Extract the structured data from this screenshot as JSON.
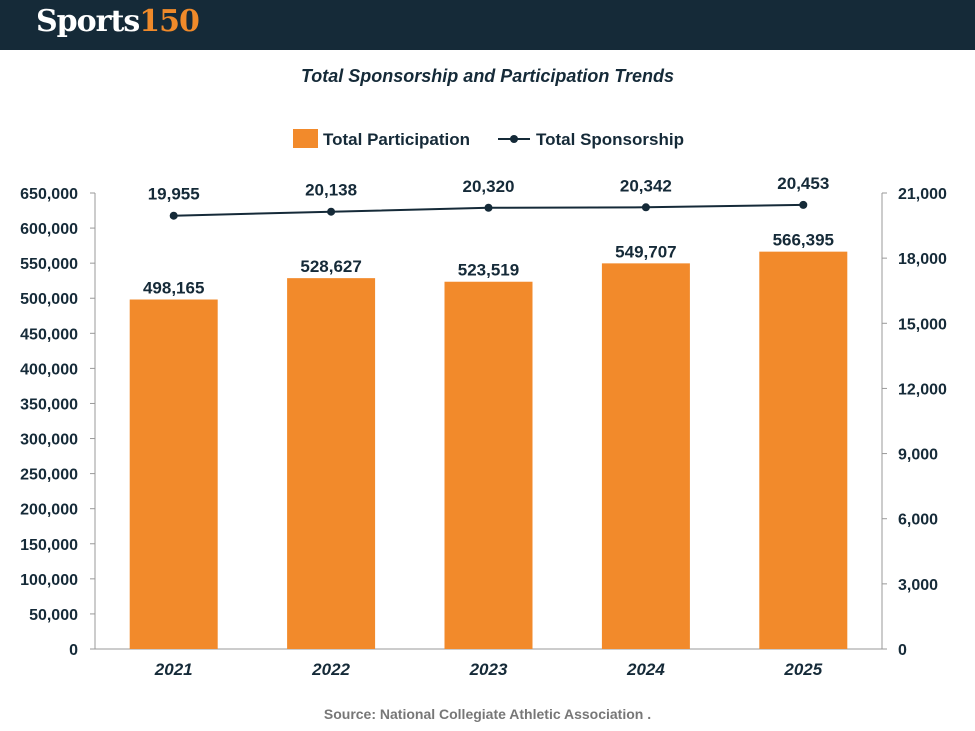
{
  "header": {
    "logo_part1": "Sports",
    "logo_part2": "150"
  },
  "source": "Source:  National Collegiate Athletic Association .",
  "colors": {
    "bar": "#f28a2b",
    "line": "#152a38",
    "header": "#152a38"
  },
  "chart_data": {
    "type": "bar",
    "title": "Total Sponsorship and Participation Trends",
    "categories": [
      "2021",
      "2022",
      "2023",
      "2024",
      "2025"
    ],
    "series": [
      {
        "name": "Total Participation",
        "type": "bar",
        "axis": "left",
        "values": [
          498165,
          528627,
          523519,
          549707,
          566395
        ],
        "labels": [
          "498,165",
          "528,627",
          "523,519",
          "549,707",
          "566,395"
        ]
      },
      {
        "name": "Total Sponsorship",
        "type": "line",
        "axis": "right",
        "values": [
          19955,
          20138,
          20320,
          20342,
          20453
        ],
        "labels": [
          "19,955",
          "20,138",
          "20,320",
          "20,342",
          "20,453"
        ]
      }
    ],
    "left_axis": {
      "range": [
        0,
        650000
      ],
      "ticks": [
        "0",
        "50,000",
        "100,000",
        "150,000",
        "200,000",
        "250,000",
        "300,000",
        "350,000",
        "400,000",
        "450,000",
        "500,000",
        "550,000",
        "600,000",
        "650,000"
      ]
    },
    "right_axis": {
      "range": [
        0,
        21000
      ],
      "ticks": [
        "0",
        "3,000",
        "6,000",
        "9,000",
        "12,000",
        "15,000",
        "18,000",
        "21,000"
      ]
    },
    "legend": "top",
    "grid": false
  }
}
